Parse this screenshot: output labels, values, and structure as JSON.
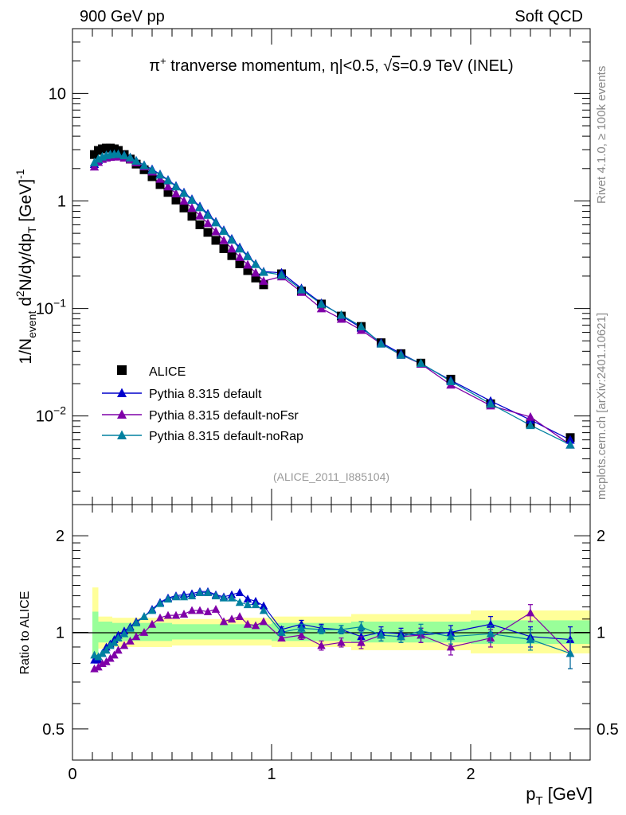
{
  "header": {
    "left": "900 GeV pp",
    "right": "Soft QCD"
  },
  "side_labels": {
    "rivet": "Rivet 4.1.0, ≥ 100k events",
    "mcplots": "mcplots.cern.ch [arXiv:2401.10621]"
  },
  "watermark": "(ALICE_2011_I885104)",
  "colors": {
    "data": "#000000",
    "default": "#0000cc",
    "noFsr": "#7f00a8",
    "noRap": "#0080a0",
    "band_inner": "#99ff99",
    "band_outer": "#ffff99"
  },
  "chart_data": [
    {
      "type": "line",
      "scale": "log",
      "title": "π+ tranverse momentum, |η|<0.5, √s=0.9 TeV (INEL)",
      "title_parts": {
        "particle": "π",
        "charge": "+",
        "text": " tranverse momentum, ",
        "eta": "η",
        "cut": "|<0.5, ",
        "sqrt": "√",
        "s_label": "s",
        "energy": "=0.9 TeV (INEL)"
      },
      "ylabel": "1/N_event d²N/dy/dp_T [GeV]^-1",
      "ylabel_parts": {
        "a": "1/N",
        "sub1": "event",
        "b": " d",
        "sup1": "2",
        "c": "N/dy/dp",
        "sub2": "T",
        "d": " [GeV]",
        "sup2": "-1"
      },
      "ylim": [
        0.0015,
        40
      ],
      "y_ticks": [
        {
          "value": 10,
          "label": "10"
        },
        {
          "value": 1,
          "label": "1"
        },
        {
          "value": 0.1,
          "base": "10",
          "exp": "−1"
        },
        {
          "value": 0.01,
          "base": "10",
          "exp": "−2"
        }
      ],
      "x": [
        0.11,
        0.13,
        0.15,
        0.17,
        0.19,
        0.21,
        0.23,
        0.26,
        0.29,
        0.32,
        0.36,
        0.4,
        0.44,
        0.48,
        0.52,
        0.56,
        0.6,
        0.64,
        0.68,
        0.72,
        0.76,
        0.8,
        0.84,
        0.88,
        0.92,
        0.96,
        1.05,
        1.15,
        1.25,
        1.35,
        1.45,
        1.55,
        1.65,
        1.75,
        1.9,
        2.1,
        2.3,
        2.5
      ],
      "series": [
        {
          "name": "ALICE",
          "values": [
            2.7,
            2.95,
            3.05,
            3.1,
            3.1,
            3.05,
            2.95,
            2.7,
            2.45,
            2.2,
            1.95,
            1.68,
            1.42,
            1.2,
            1.02,
            0.86,
            0.72,
            0.6,
            0.51,
            0.43,
            0.36,
            0.31,
            0.26,
            0.225,
            0.192,
            0.166,
            0.21,
            0.145,
            0.11,
            0.085,
            0.068,
            0.048,
            0.038,
            0.031,
            0.022,
            0.013,
            0.0085,
            0.0063
          ]
        },
        {
          "name": "Pythia 8.315 default",
          "values": [
            2.2,
            2.4,
            2.55,
            2.65,
            2.7,
            2.72,
            2.72,
            2.66,
            2.54,
            2.37,
            2.15,
            1.97,
            1.77,
            1.57,
            1.38,
            1.2,
            1.04,
            0.89,
            0.76,
            0.64,
            0.535,
            0.445,
            0.37,
            0.31,
            0.26,
            0.22,
            0.215,
            0.154,
            0.112,
            0.086,
            0.066,
            0.048,
            0.038,
            0.0305,
            0.0215,
            0.0138,
            0.0092,
            0.006
          ]
        },
        {
          "name": "Pythia 8.315 default-noFsr",
          "values": [
            2.08,
            2.3,
            2.45,
            2.52,
            2.56,
            2.58,
            2.58,
            2.52,
            2.43,
            2.28,
            2.09,
            1.87,
            1.6,
            1.36,
            1.17,
            1.0,
            0.86,
            0.73,
            0.62,
            0.52,
            0.43,
            0.36,
            0.3,
            0.255,
            0.215,
            0.18,
            0.198,
            0.142,
            0.1,
            0.08,
            0.063,
            0.047,
            0.037,
            0.0305,
            0.0195,
            0.0125,
            0.0098,
            0.0054
          ]
        },
        {
          "name": "Pythia 8.315 default-noRap",
          "values": [
            2.28,
            2.46,
            2.58,
            2.66,
            2.7,
            2.72,
            2.72,
            2.65,
            2.53,
            2.36,
            2.14,
            1.94,
            1.75,
            1.55,
            1.36,
            1.18,
            1.02,
            0.87,
            0.74,
            0.63,
            0.525,
            0.435,
            0.36,
            0.305,
            0.258,
            0.218,
            0.205,
            0.15,
            0.11,
            0.087,
            0.068,
            0.047,
            0.037,
            0.031,
            0.021,
            0.013,
            0.0082,
            0.0054
          ]
        }
      ],
      "legend": [
        "ALICE",
        "Pythia 8.315 default",
        "Pythia 8.315 default-noFsr",
        "Pythia 8.315 default-noRap"
      ],
      "legend_position": "bottom-left"
    },
    {
      "type": "line",
      "scale": "log",
      "ylabel": "Ratio to ALICE",
      "ylim": [
        0.4,
        2.5
      ],
      "y_ticks": [
        {
          "value": 2,
          "label": "2"
        },
        {
          "value": 1,
          "label": "1"
        },
        {
          "value": 0.5,
          "label": "0.5"
        }
      ],
      "xlabel": "p_T [GeV]",
      "xlabel_parts": {
        "p": "p",
        "sub": "T",
        "unit": " [GeV]"
      },
      "xlim": [
        0,
        2.6
      ],
      "x_ticks": [
        {
          "value": 0,
          "label": "0"
        },
        {
          "value": 1,
          "label": "1"
        },
        {
          "value": 2,
          "label": "2"
        }
      ],
      "reference_line": 1,
      "bands": {
        "inner": [
          [
            0.1,
            0.86,
            1.16
          ],
          [
            0.13,
            0.93,
            1.08
          ],
          [
            0.2,
            0.94,
            1.07
          ],
          [
            0.5,
            0.95,
            1.06
          ],
          [
            0.8,
            0.95,
            1.06
          ],
          [
            1.0,
            0.94,
            1.07
          ],
          [
            1.4,
            0.93,
            1.08
          ],
          [
            2.0,
            0.92,
            1.09
          ],
          [
            2.6,
            0.9,
            1.12
          ]
        ],
        "outer": [
          [
            0.1,
            0.82,
            1.38
          ],
          [
            0.13,
            0.89,
            1.12
          ],
          [
            0.2,
            0.9,
            1.11
          ],
          [
            0.5,
            0.91,
            1.1
          ],
          [
            0.8,
            0.91,
            1.11
          ],
          [
            1.0,
            0.9,
            1.12
          ],
          [
            1.4,
            0.88,
            1.14
          ],
          [
            2.0,
            0.86,
            1.17
          ],
          [
            2.6,
            0.84,
            1.2
          ]
        ]
      },
      "series": [
        {
          "name": "Pythia 8.315 default",
          "values": [
            0.82,
            0.82,
            0.86,
            0.9,
            0.92,
            0.95,
            0.98,
            1.01,
            1.04,
            1.08,
            1.12,
            1.18,
            1.24,
            1.28,
            1.3,
            1.31,
            1.32,
            1.34,
            1.34,
            1.31,
            1.29,
            1.31,
            1.33,
            1.27,
            1.25,
            1.21,
            1.02,
            1.06,
            1.03,
            1.02,
            0.97,
            1.0,
            0.99,
            0.98,
            1.0,
            1.06,
            0.97,
            0.95
          ],
          "errors": [
            0,
            0,
            0,
            0,
            0,
            0,
            0,
            0,
            0,
            0,
            0,
            0,
            0,
            0,
            0,
            0,
            0,
            0,
            0,
            0,
            0,
            0,
            0,
            0,
            0,
            0,
            0.02,
            0.03,
            0.03,
            0.03,
            0.04,
            0.04,
            0.04,
            0.05,
            0.05,
            0.06,
            0.07,
            0.09
          ]
        },
        {
          "name": "Pythia 8.315 default-noFsr",
          "values": [
            0.77,
            0.78,
            0.8,
            0.81,
            0.83,
            0.85,
            0.88,
            0.91,
            0.94,
            0.97,
            1.0,
            1.06,
            1.11,
            1.13,
            1.13,
            1.14,
            1.17,
            1.17,
            1.16,
            1.18,
            1.08,
            1.1,
            1.12,
            1.06,
            1.05,
            1.08,
            0.96,
            0.98,
            0.91,
            0.93,
            0.93,
            0.98,
            0.97,
            0.98,
            0.9,
            0.96,
            1.15,
            0.86
          ],
          "errors": [
            0,
            0,
            0,
            0,
            0,
            0,
            0,
            0,
            0,
            0,
            0,
            0,
            0,
            0,
            0,
            0,
            0,
            0,
            0,
            0,
            0,
            0,
            0,
            0,
            0,
            0,
            0.02,
            0.03,
            0.03,
            0.03,
            0.04,
            0.04,
            0.04,
            0.05,
            0.05,
            0.06,
            0.07,
            0.09
          ]
        },
        {
          "name": "Pythia 8.315 default-noRap",
          "values": [
            0.85,
            0.84,
            0.86,
            0.88,
            0.91,
            0.93,
            0.96,
            0.99,
            1.03,
            1.07,
            1.12,
            1.17,
            1.23,
            1.27,
            1.29,
            1.29,
            1.3,
            1.33,
            1.33,
            1.3,
            1.28,
            1.28,
            1.24,
            1.22,
            1.22,
            1.17,
            1.0,
            1.03,
            1.02,
            1.02,
            1.04,
            0.98,
            0.97,
            1.01,
            0.97,
            0.99,
            0.95,
            0.86
          ],
          "errors": [
            0,
            0,
            0,
            0,
            0,
            0,
            0,
            0,
            0,
            0,
            0,
            0,
            0,
            0,
            0,
            0,
            0,
            0,
            0,
            0,
            0,
            0,
            0,
            0,
            0,
            0,
            0.02,
            0.03,
            0.03,
            0.03,
            0.04,
            0.04,
            0.04,
            0.05,
            0.05,
            0.06,
            0.07,
            0.09
          ]
        }
      ]
    }
  ]
}
